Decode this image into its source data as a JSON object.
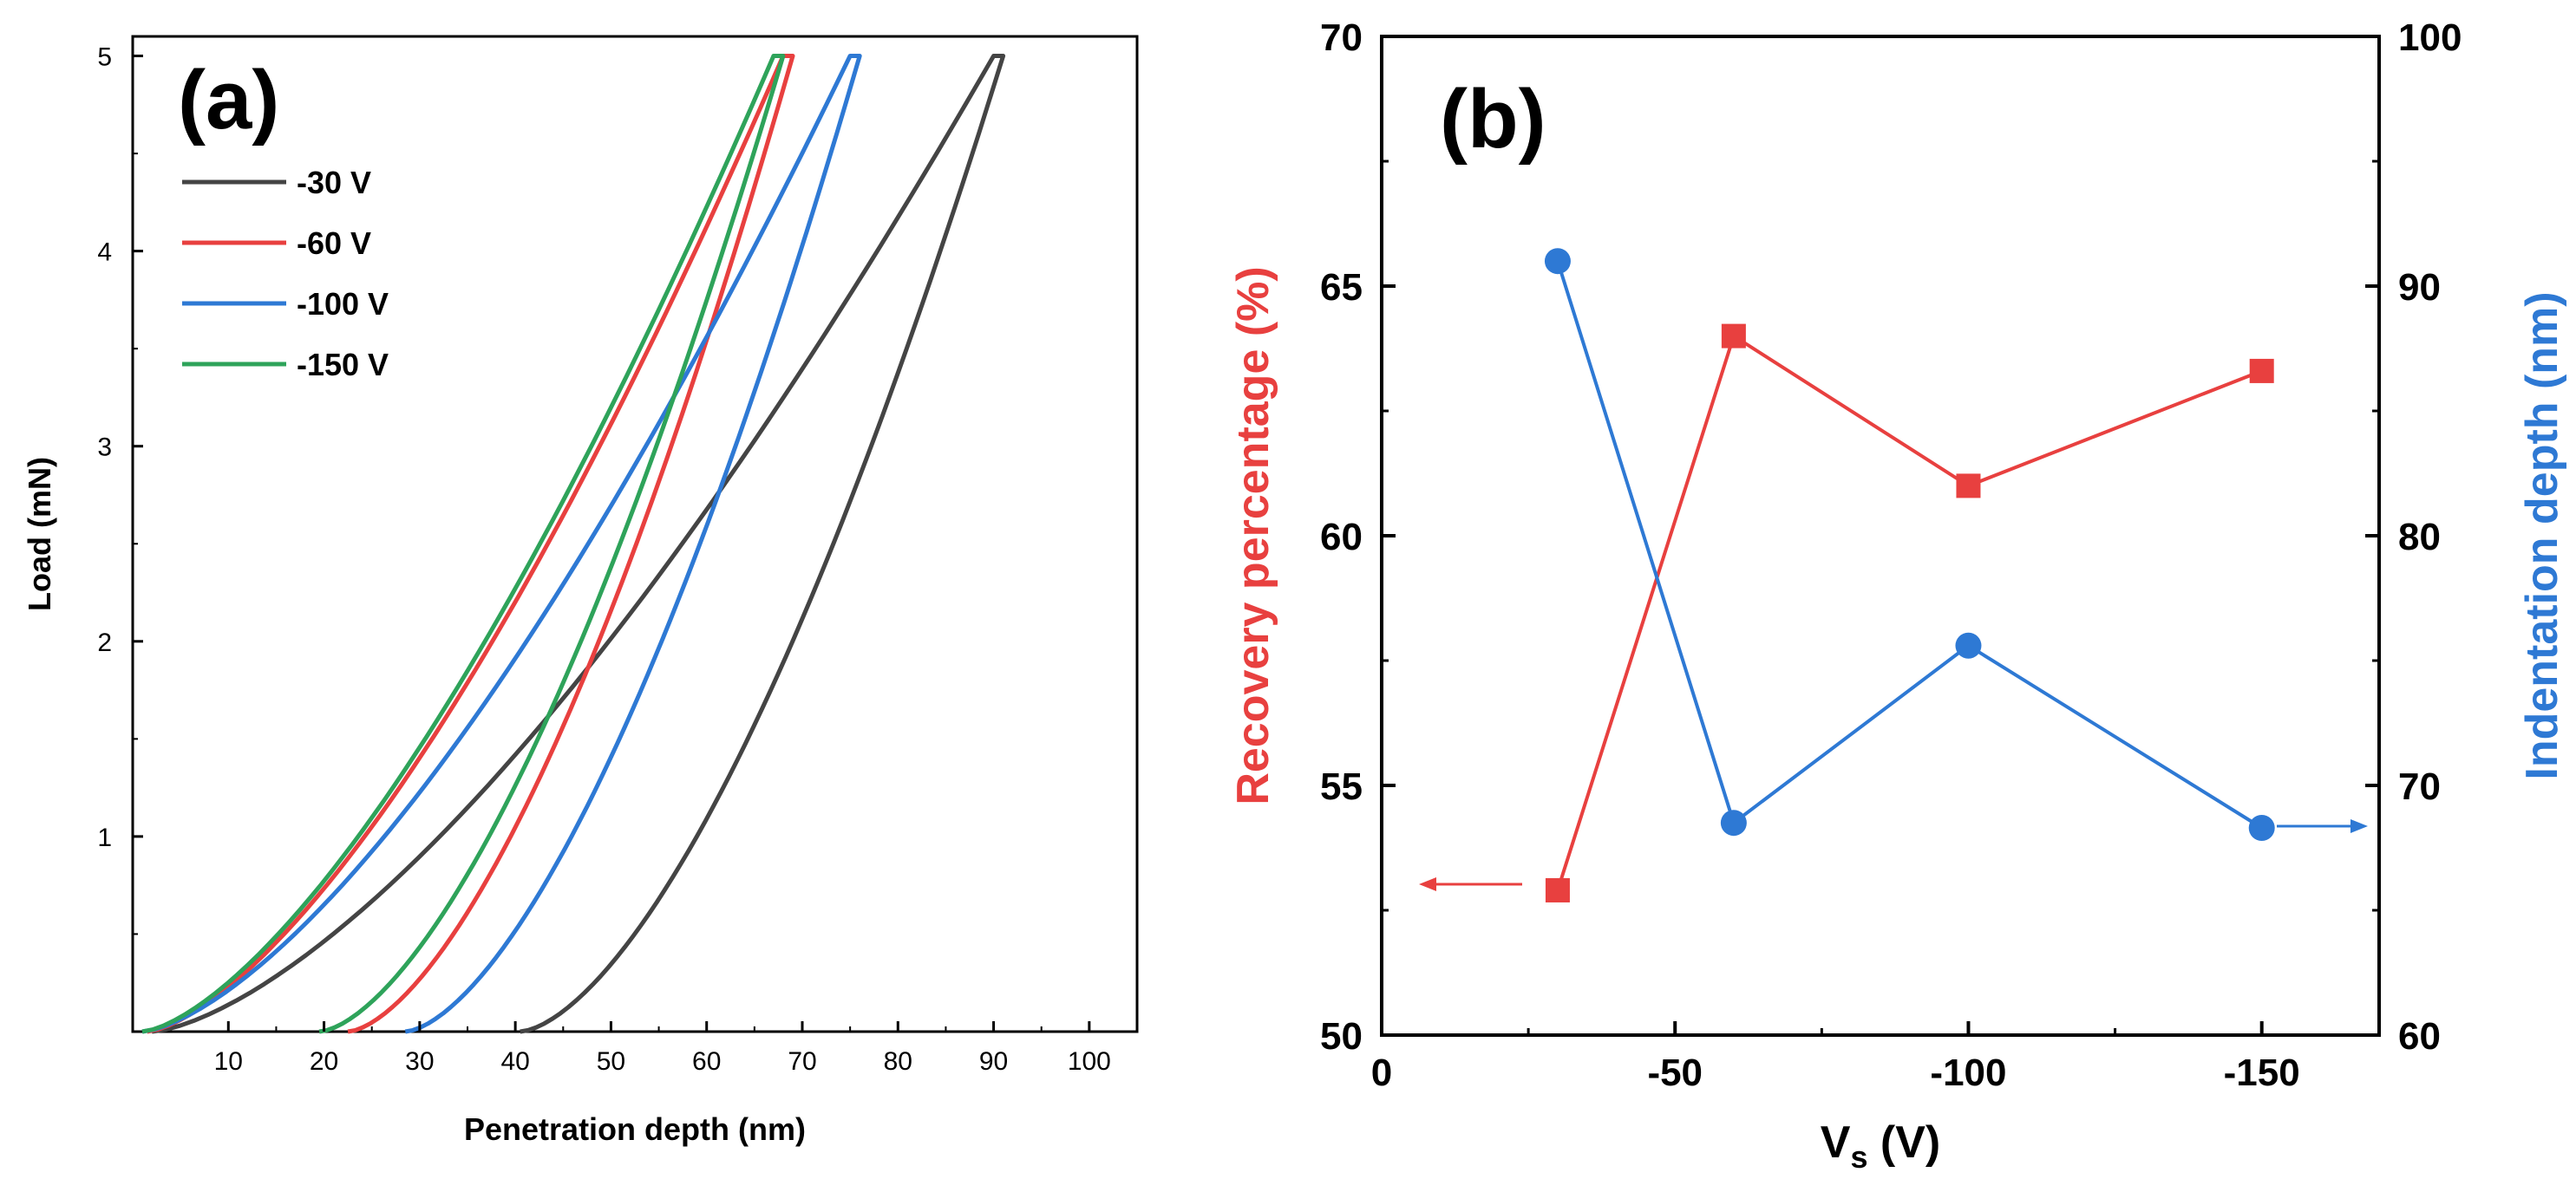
{
  "chart_data": [
    {
      "panel": "(a)",
      "type": "line",
      "xlabel": "Penetration depth (nm)",
      "ylabel": "Load (mN)",
      "xlim": [
        0,
        105
      ],
      "ylim": [
        0,
        5.1
      ],
      "xticks": [
        "10",
        "20",
        "30",
        "40",
        "50",
        "60",
        "70",
        "80",
        "90",
        "100"
      ],
      "yticks": [
        "1",
        "2",
        "3",
        "4",
        "5"
      ],
      "legend_position": "top-left",
      "series": [
        {
          "name": "-30 V",
          "color": "#444444",
          "loading_start": 2,
          "max_depth": 90,
          "peak_load": 5,
          "unload_end": 40.5
        },
        {
          "name": "-60 V",
          "color": "#e8403f",
          "loading_start": 1.5,
          "max_depth": 68,
          "peak_load": 5,
          "unload_end": 22.5
        },
        {
          "name": "-100 V",
          "color": "#2e79d4",
          "loading_start": 1,
          "max_depth": 75,
          "peak_load": 5,
          "unload_end": 28.5
        },
        {
          "name": "-150 V",
          "color": "#2ea35a",
          "loading_start": 1,
          "max_depth": 67,
          "peak_load": 5,
          "unload_end": 19.5
        }
      ]
    },
    {
      "panel": "(b)",
      "type": "line",
      "xlabel_main": "V",
      "xlabel_sub": "s",
      "xlabel_unit": " (V)",
      "ylabel_left": "Recovery percentage (%)",
      "ylabel_right": "Indentation depth (nm)",
      "x_range": [
        0,
        -170
      ],
      "xticks": [
        "0",
        "-50",
        "-100",
        "-150"
      ],
      "left_ylim": [
        50,
        70
      ],
      "left_yticks": [
        "50",
        "55",
        "60",
        "65",
        "70"
      ],
      "right_ylim": [
        60,
        100
      ],
      "right_yticks": [
        "60",
        "70",
        "80",
        "90",
        "100"
      ],
      "x": [
        -30,
        -60,
        -100,
        -150
      ],
      "series": [
        {
          "name": "Recovery percentage",
          "axis": "left",
          "marker": "square",
          "color": "#e8403f",
          "values": [
            52.9,
            64.0,
            61.0,
            63.3
          ]
        },
        {
          "name": "Indentation depth",
          "axis": "right",
          "marker": "circle",
          "color": "#2e79d4",
          "values": [
            91.0,
            68.5,
            75.6,
            68.3
          ]
        }
      ]
    }
  ]
}
